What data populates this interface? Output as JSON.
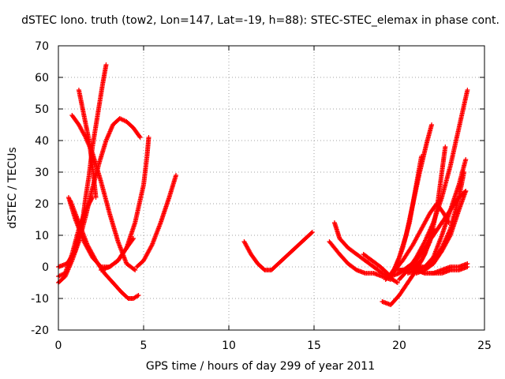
{
  "chart_data": {
    "type": "scatter",
    "title": "dSTEC Iono. truth (tow2, Lon=147, Lat=-19, h=88): STEC-STEC_elemax in phase cont.",
    "xlabel": "GPS time / hours of day 299 of year 2011",
    "ylabel": "dSTEC  / TECUs",
    "xlim": [
      0,
      25
    ],
    "ylim": [
      -20,
      70
    ],
    "x_ticks": [
      0,
      5,
      10,
      15,
      20,
      25
    ],
    "y_ticks": [
      -20,
      -10,
      0,
      10,
      20,
      30,
      40,
      50,
      60,
      70
    ],
    "x_tick_labels": [
      "0",
      "5",
      "10",
      "15",
      "20",
      "25"
    ],
    "y_tick_labels": [
      "-20",
      "-10",
      "0",
      "10",
      "20",
      "30",
      "40",
      "50",
      "60",
      "70"
    ],
    "grid": true,
    "marker": "plus",
    "color": "#ff0000",
    "series": [
      {
        "x": [
          0.8,
          1.2,
          1.6,
          2.0,
          2.5,
          3.0,
          3.5,
          4.0,
          4.5
        ],
        "y": [
          48,
          45,
          41,
          36,
          27,
          17,
          8,
          1,
          -1
        ]
      },
      {
        "x": [
          0.0,
          0.4,
          0.8,
          1.2,
          1.6,
          2.0,
          2.4,
          2.8,
          3.2,
          3.6,
          4.0,
          4.4,
          4.8
        ],
        "y": [
          -5,
          -3,
          2,
          8,
          16,
          25,
          33,
          40,
          45,
          47,
          46,
          44,
          41
        ]
      },
      {
        "x": [
          0.0,
          0.4,
          0.8,
          1.2,
          1.6,
          2.0
        ],
        "y": [
          -3,
          -2,
          4,
          12,
          18,
          22
        ]
      },
      {
        "x": [
          0.6,
          1.0,
          1.5,
          2.0,
          2.5,
          3.0,
          3.5,
          4.0,
          4.4
        ],
        "y": [
          22,
          15,
          8,
          3,
          0,
          0,
          2,
          6,
          9
        ]
      },
      {
        "x": [
          0.7,
          1.2,
          1.7,
          2.2,
          2.7,
          3.2,
          3.7,
          4.1,
          4.4,
          4.7
        ],
        "y": [
          21,
          14,
          7,
          2,
          -2,
          -5,
          -8,
          -10,
          -10,
          -9
        ]
      },
      {
        "x": [
          0.0,
          0.5,
          1.0,
          1.4,
          1.6,
          1.8,
          2.0,
          2.3,
          2.6,
          2.8
        ],
        "y": [
          0,
          1,
          5,
          14,
          22,
          29,
          38,
          48,
          58,
          64
        ]
      },
      {
        "x": [
          1.2,
          1.5,
          1.8,
          2.0,
          2.2
        ],
        "y": [
          56,
          48,
          40,
          32,
          22
        ]
      },
      {
        "x": [
          2.5,
          3.0,
          3.5,
          4.0,
          4.5,
          5.0,
          5.2,
          5.3
        ],
        "y": [
          -1,
          0,
          2,
          6,
          14,
          26,
          35,
          41
        ]
      },
      {
        "x": [
          4.6,
          5.0,
          5.5,
          6.0,
          6.5,
          6.9
        ],
        "y": [
          0,
          2,
          7,
          14,
          22,
          29
        ]
      },
      {
        "x": [
          10.9,
          11.3,
          11.7,
          12.1,
          12.5,
          12.9,
          13.3,
          13.7,
          14.1,
          14.5,
          14.9
        ],
        "y": [
          8,
          4,
          1,
          -1,
          -1,
          1,
          3,
          5,
          7,
          9,
          11
        ]
      },
      {
        "x": [
          15.9,
          16.5,
          17.0,
          17.5,
          18.0,
          18.5,
          19.0,
          19.5
        ],
        "y": [
          8,
          4,
          1,
          -1,
          -2,
          -2,
          -3,
          -4
        ]
      },
      {
        "x": [
          16.2,
          16.5,
          17.0,
          17.5,
          18.0,
          18.5,
          19.0,
          19.4
        ],
        "y": [
          14,
          9,
          6,
          4,
          2,
          0,
          -2,
          -3
        ]
      },
      {
        "x": [
          17.9,
          18.4,
          18.9,
          19.3,
          19.6,
          19.9
        ],
        "y": [
          4,
          2,
          0,
          -2,
          -4,
          -5
        ]
      },
      {
        "x": [
          19.2,
          19.6,
          20.0,
          20.4,
          20.8,
          21.2,
          21.6,
          21.9
        ],
        "y": [
          -4,
          -2,
          3,
          10,
          20,
          30,
          39,
          45
        ]
      },
      {
        "x": [
          19.4,
          19.8,
          20.2,
          20.6,
          21.0,
          21.3
        ],
        "y": [
          -3,
          0,
          6,
          14,
          26,
          35
        ]
      },
      {
        "x": [
          19.0,
          19.5,
          20.0,
          20.5,
          21.0,
          21.5,
          22.0
        ],
        "y": [
          -11,
          -12,
          -9,
          -5,
          -1,
          4,
          12
        ]
      },
      {
        "x": [
          19.5,
          20.0,
          20.5,
          21.0,
          21.5,
          22.0,
          22.5,
          23.0,
          23.5,
          23.9
        ],
        "y": [
          -3,
          -2,
          0,
          2,
          6,
          10,
          14,
          18,
          22,
          24
        ]
      },
      {
        "x": [
          19.6,
          20.2,
          20.8,
          21.4,
          21.8,
          22.2,
          22.6,
          22.9
        ],
        "y": [
          -2,
          2,
          7,
          13,
          17,
          20,
          17,
          14
        ]
      },
      {
        "x": [
          20.0,
          20.5,
          21.0,
          21.5,
          22.0,
          22.5,
          23.0,
          23.5,
          24.0
        ],
        "y": [
          -4,
          -1,
          3,
          8,
          14,
          22,
          32,
          44,
          56
        ]
      },
      {
        "x": [
          19.8,
          20.3,
          20.8,
          21.3,
          21.8,
          22.2,
          22.5,
          22.7
        ],
        "y": [
          -1,
          -1,
          0,
          2,
          8,
          18,
          30,
          38
        ]
      },
      {
        "x": [
          20.0,
          20.5,
          21.0,
          21.5,
          22.0,
          22.5,
          23.0,
          23.5,
          23.9
        ],
        "y": [
          -1,
          -1,
          0,
          0,
          3,
          10,
          18,
          26,
          34
        ]
      },
      {
        "x": [
          20.5,
          21.0,
          21.5,
          22.0,
          22.5,
          23.0,
          23.5,
          23.8
        ],
        "y": [
          -2,
          -1,
          0,
          2,
          6,
          12,
          22,
          30
        ]
      },
      {
        "x": [
          20.5,
          21.0,
          21.5,
          22.0,
          22.5,
          23.0,
          23.5,
          24.0
        ],
        "y": [
          0,
          -1,
          -2,
          -2,
          -1,
          0,
          0,
          1
        ]
      },
      {
        "x": [
          21.0,
          21.5,
          22.0,
          22.5,
          23.0,
          23.5,
          24.0
        ],
        "y": [
          -1,
          -2,
          -2,
          -2,
          -1,
          -1,
          0
        ]
      },
      {
        "x": [
          21.0,
          21.5,
          22.0,
          22.5,
          23.0,
          23.5,
          23.9
        ],
        "y": [
          -2,
          -1,
          1,
          5,
          10,
          18,
          24
        ]
      }
    ]
  }
}
